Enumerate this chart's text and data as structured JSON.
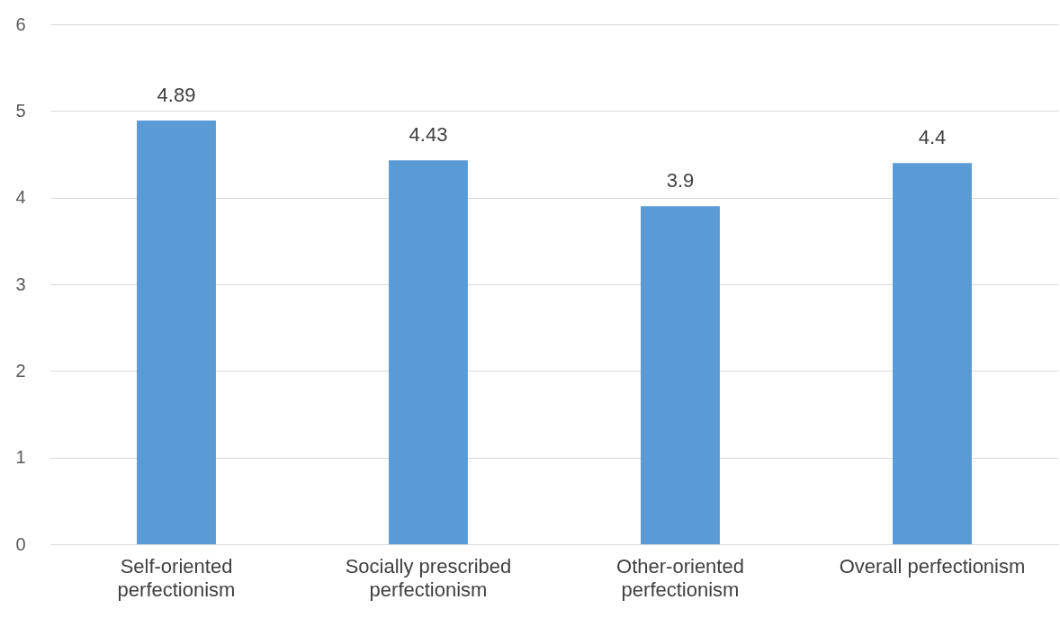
{
  "chart_data": {
    "type": "bar",
    "categories": [
      "Self-oriented perfectionism",
      "Socially prescribed perfectionism",
      "Other-oriented perfectionism",
      "Overall perfectionism"
    ],
    "values": [
      4.89,
      4.43,
      3.9,
      4.4
    ],
    "color": "#5b9bd5",
    "ylim": [
      0,
      6
    ],
    "yticks": [
      0,
      1,
      2,
      3,
      4,
      5,
      6
    ],
    "grid": "y",
    "data_labels": true
  }
}
